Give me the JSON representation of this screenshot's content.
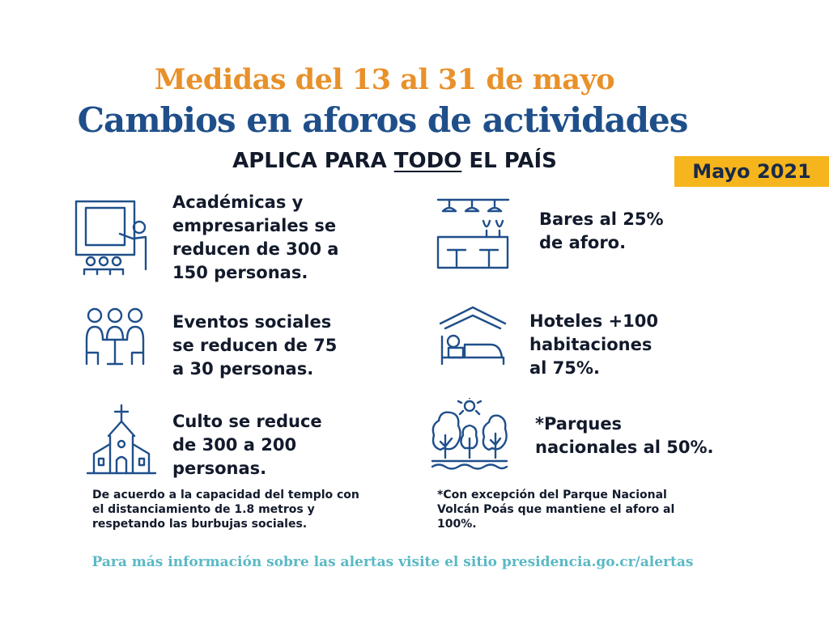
{
  "header": {
    "title_dates": "Medidas del 13 al 31 de mayo",
    "title_main": "Cambios en aforos de actividades",
    "subtitle_pre": "APLICA PARA ",
    "subtitle_underlined": "TODO",
    "subtitle_post": " EL PAÍS",
    "badge": "Mayo 2021"
  },
  "items": {
    "academicas": {
      "icon": "classroom-presentation-icon",
      "lines": [
        "Académicas y",
        "empresariales se",
        "reducen de 300 a",
        "150 personas."
      ]
    },
    "bares": {
      "icon": "bar-counter-icon",
      "lines": [
        "Bares al 25%",
        "de aforo."
      ]
    },
    "eventos": {
      "icon": "social-gathering-icon",
      "lines": [
        "Eventos sociales",
        "se reducen de 75",
        "a 30 personas."
      ]
    },
    "hoteles": {
      "icon": "hotel-bed-icon",
      "lines": [
        "Hoteles +100",
        "habitaciones",
        "al 75%."
      ]
    },
    "culto": {
      "icon": "church-icon",
      "lines": [
        "Culto se reduce",
        "de 300 a 200",
        "personas."
      ]
    },
    "parques": {
      "icon": "national-park-icon",
      "lines": [
        "*Parques",
        "nacionales al 50%."
      ]
    }
  },
  "notes": {
    "culto": [
      "De acuerdo a la capacidad del templo con",
      "el distanciamiento de 1.8 metros y",
      "respetando las burbujas sociales."
    ],
    "parques": [
      "*Con excepción del Parque Nacional",
      "Volcán Poás que mantiene el aforo al",
      "100%."
    ]
  },
  "footer": "Para más información sobre las alertas visite el sitio presidencia.go.cr/alertas",
  "colors": {
    "orange_title": "#e8912a",
    "blue_title": "#1f4f8a",
    "badge_bg": "#f6b51c",
    "footer_teal": "#5ab9c5"
  }
}
